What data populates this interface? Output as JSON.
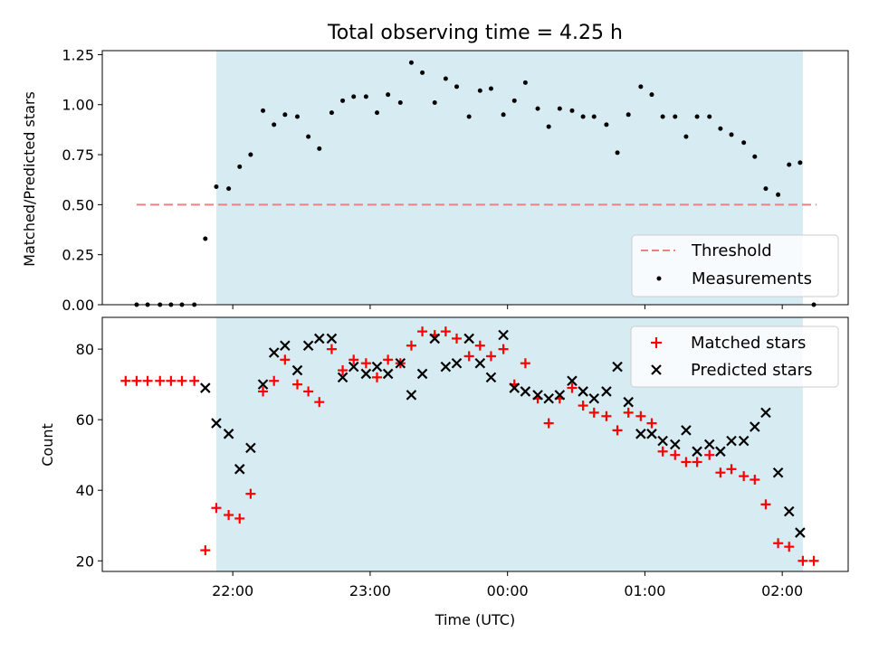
{
  "chart_data": [
    {
      "type": "scatter",
      "title": "Total observing time = 4.25 h",
      "xlabel": "",
      "ylabel": "Matched/Predicted stars",
      "x_unit": "UTC hours (24.0 = 00:00 next day)",
      "xlim": [
        21.05,
        26.48
      ],
      "ylim": [
        0.0,
        1.27
      ],
      "yticks": [
        0.0,
        0.25,
        0.5,
        0.75,
        1.0,
        1.25
      ],
      "ytick_labels": [
        "0.00",
        "0.25",
        "0.50",
        "0.75",
        "1.00",
        "1.25"
      ],
      "shaded_span": [
        21.88,
        26.15
      ],
      "shade_color": "#add8e6",
      "legend_position": "lower right",
      "threshold": {
        "name": "Threshold",
        "y": 0.5,
        "x_range": [
          21.3,
          26.25
        ],
        "color": "#f08080",
        "style": "dashed"
      },
      "series": [
        {
          "name": "Measurements",
          "color": "#000000",
          "marker": "dot",
          "x": [
            21.3,
            21.38,
            21.47,
            21.55,
            21.63,
            21.72,
            21.8,
            21.88,
            21.97,
            22.05,
            22.13,
            22.22,
            22.3,
            22.38,
            22.47,
            22.55,
            22.63,
            22.72,
            22.8,
            22.88,
            22.97,
            23.05,
            23.13,
            23.22,
            23.3,
            23.38,
            23.47,
            23.55,
            23.63,
            23.72,
            23.8,
            23.88,
            23.97,
            24.05,
            24.13,
            24.22,
            24.3,
            24.38,
            24.47,
            24.55,
            24.63,
            24.72,
            24.8,
            24.88,
            24.97,
            25.05,
            25.13,
            25.22,
            25.3,
            25.38,
            25.47,
            25.55,
            25.63,
            25.72,
            25.8,
            25.88,
            25.97,
            26.05,
            26.13,
            26.23
          ],
          "y": [
            0.0,
            0.0,
            0.0,
            0.0,
            0.0,
            0.0,
            0.33,
            0.59,
            0.58,
            0.69,
            0.75,
            0.97,
            0.9,
            0.95,
            0.94,
            0.84,
            0.78,
            0.96,
            1.02,
            1.04,
            1.04,
            0.96,
            1.05,
            1.01,
            1.21,
            1.16,
            1.01,
            1.13,
            1.09,
            0.94,
            1.07,
            1.08,
            0.95,
            1.02,
            1.11,
            0.98,
            0.89,
            0.98,
            0.97,
            0.94,
            0.94,
            0.9,
            0.76,
            0.95,
            1.09,
            1.05,
            0.94,
            0.94,
            0.84,
            0.94,
            0.94,
            0.88,
            0.85,
            0.81,
            0.74,
            0.58,
            0.55,
            0.7,
            0.71,
            0.0
          ]
        }
      ]
    },
    {
      "type": "scatter",
      "title": "",
      "xlabel": "Time (UTC)",
      "ylabel": "Count",
      "xlim": [
        21.05,
        26.48
      ],
      "ylim": [
        17,
        89
      ],
      "yticks": [
        20,
        40,
        60,
        80
      ],
      "ytick_labels": [
        "20",
        "40",
        "60",
        "80"
      ],
      "xticks": [
        22,
        23,
        24,
        25,
        26
      ],
      "xtick_labels": [
        "22:00",
        "23:00",
        "00:00",
        "01:00",
        "02:00"
      ],
      "shaded_span": [
        21.88,
        26.15
      ],
      "shade_color": "#add8e6",
      "legend_position": "upper right",
      "series": [
        {
          "name": "Matched stars",
          "color": "#ff0000",
          "marker": "plus",
          "x": [
            21.22,
            21.3,
            21.38,
            21.47,
            21.55,
            21.63,
            21.72,
            21.8,
            21.88,
            21.97,
            22.05,
            22.13,
            22.22,
            22.3,
            22.38,
            22.47,
            22.55,
            22.63,
            22.72,
            22.8,
            22.88,
            22.97,
            23.05,
            23.13,
            23.22,
            23.3,
            23.38,
            23.47,
            23.55,
            23.63,
            23.72,
            23.8,
            23.88,
            23.97,
            24.05,
            24.13,
            24.22,
            24.3,
            24.38,
            24.47,
            24.55,
            24.63,
            24.72,
            24.8,
            24.88,
            24.97,
            25.05,
            25.13,
            25.22,
            25.3,
            25.38,
            25.47,
            25.55,
            25.63,
            25.72,
            25.8,
            25.88,
            25.97,
            26.05,
            26.15,
            26.23
          ],
          "y": [
            71,
            71,
            71,
            71,
            71,
            71,
            71,
            23,
            35,
            33,
            32,
            39,
            68,
            71,
            77,
            70,
            68,
            65,
            80,
            74,
            77,
            76,
            72,
            77,
            76,
            81,
            85,
            84,
            85,
            83,
            78,
            81,
            78,
            80,
            70,
            76,
            66,
            59,
            66,
            69,
            64,
            62,
            61,
            57,
            62,
            61,
            59,
            51,
            50,
            48,
            48,
            50,
            45,
            46,
            44,
            43,
            36,
            25,
            24,
            20,
            20
          ]
        },
        {
          "name": "Predicted stars",
          "color": "#000000",
          "marker": "x",
          "x": [
            21.8,
            21.88,
            21.97,
            22.05,
            22.13,
            22.22,
            22.3,
            22.38,
            22.47,
            22.55,
            22.63,
            22.72,
            22.8,
            22.88,
            22.97,
            23.05,
            23.13,
            23.22,
            23.3,
            23.38,
            23.47,
            23.55,
            23.63,
            23.72,
            23.8,
            23.88,
            23.97,
            24.05,
            24.13,
            24.22,
            24.3,
            24.38,
            24.47,
            24.55,
            24.63,
            24.72,
            24.8,
            24.88,
            24.97,
            25.05,
            25.13,
            25.22,
            25.3,
            25.38,
            25.47,
            25.55,
            25.63,
            25.72,
            25.8,
            25.88,
            25.97,
            26.05,
            26.13
          ],
          "y": [
            69,
            59,
            56,
            46,
            52,
            70,
            79,
            81,
            74,
            81,
            83,
            83,
            72,
            75,
            73,
            75,
            73,
            76,
            67,
            73,
            83,
            75,
            76,
            83,
            76,
            72,
            84,
            69,
            68,
            67,
            66,
            67,
            71,
            68,
            66,
            68,
            75,
            65,
            56,
            56,
            54,
            53,
            57,
            51,
            53,
            51,
            54,
            54,
            58,
            62,
            45,
            34,
            28
          ]
        }
      ]
    }
  ]
}
